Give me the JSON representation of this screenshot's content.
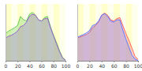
{
  "chart_data": [
    {
      "type": "area",
      "tick_labels": "x",
      "x": [
        0,
        5,
        10,
        15,
        20,
        25,
        30,
        35,
        40,
        45,
        50,
        55,
        60,
        65,
        70,
        75,
        80,
        85,
        90,
        95,
        100
      ],
      "xlim": [
        0,
        100
      ],
      "xticks": [
        0,
        20,
        40,
        60,
        80,
        100
      ],
      "ylim": [
        0,
        100
      ],
      "series": [
        {
          "color": "#66cc55",
          "values": [
            48,
            52,
            55,
            58,
            62,
            78,
            72,
            70,
            82,
            85,
            80,
            72,
            70,
            76,
            78,
            60,
            45,
            32,
            18,
            6,
            1
          ]
        },
        {
          "color": "#9966cc",
          "values": [
            40,
            43,
            45,
            48,
            52,
            60,
            62,
            68,
            78,
            82,
            80,
            72,
            70,
            74,
            75,
            58,
            44,
            30,
            16,
            5,
            1
          ]
        }
      ]
    },
    {
      "type": "area",
      "tick_labels": "x",
      "x": [
        0,
        5,
        10,
        15,
        20,
        25,
        30,
        35,
        40,
        45,
        50,
        55,
        60,
        65,
        70,
        75,
        80,
        85,
        90,
        95,
        100
      ],
      "xlim": [
        0,
        100
      ],
      "xticks": [
        0,
        20,
        40,
        60,
        80,
        100
      ],
      "ylim": [
        0,
        100
      ],
      "series": [
        {
          "color": "#ff6666",
          "values": [
            40,
            42,
            44,
            46,
            50,
            58,
            62,
            68,
            80,
            84,
            80,
            72,
            70,
            74,
            76,
            62,
            48,
            36,
            22,
            8,
            2
          ]
        },
        {
          "color": "#6677ff",
          "values": [
            41,
            44,
            46,
            49,
            53,
            62,
            64,
            70,
            80,
            83,
            78,
            70,
            68,
            72,
            72,
            54,
            38,
            24,
            10,
            3,
            0.5
          ]
        }
      ]
    }
  ]
}
